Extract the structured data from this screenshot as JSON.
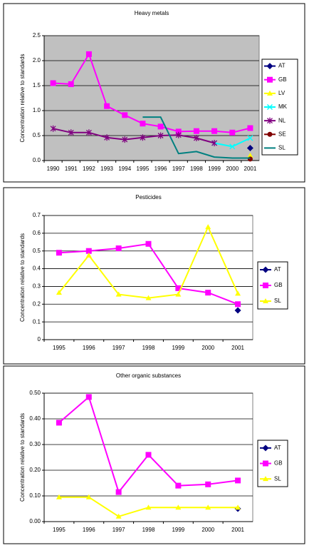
{
  "chart_data": [
    {
      "type": "line",
      "title": "Heavy metals",
      "y_label": "Concentration relative to standards",
      "categories": [
        "1990",
        "1991",
        "1992",
        "1993",
        "1994",
        "1995",
        "1996",
        "1997",
        "1998",
        "1999",
        "2000",
        "2001"
      ],
      "ylim": [
        0,
        2.5
      ],
      "yticks": [
        {
          "value": 0,
          "label": "0.0"
        },
        0.5,
        {
          "value": 1,
          "label": "1.0"
        },
        1.5,
        {
          "value": 2,
          "label": "2.0"
        },
        2.5
      ],
      "grid": true,
      "legend": "right",
      "plot_background": "#c0c0c0",
      "series": [
        {
          "name": "AT",
          "color": "#000080",
          "marker": "diamond",
          "values": [
            null,
            null,
            null,
            null,
            null,
            null,
            null,
            null,
            null,
            null,
            null,
            0.25
          ]
        },
        {
          "name": "GB",
          "color": "#ff00ff",
          "marker": "square",
          "values": [
            1.55,
            1.53,
            2.13,
            1.09,
            0.91,
            0.74,
            0.68,
            0.58,
            0.59,
            0.59,
            0.56,
            0.65
          ]
        },
        {
          "name": "LV",
          "color": "#ffff00",
          "marker": "triangle",
          "values": [
            null,
            null,
            null,
            null,
            null,
            null,
            null,
            null,
            null,
            null,
            null,
            0.1
          ]
        },
        {
          "name": "MK",
          "color": "#00ffff",
          "marker": "x",
          "values": [
            null,
            null,
            null,
            null,
            null,
            null,
            null,
            null,
            null,
            0.35,
            0.28,
            0.45
          ]
        },
        {
          "name": "NL",
          "color": "#800080",
          "marker": "star",
          "values": [
            0.64,
            0.56,
            0.56,
            0.46,
            0.42,
            0.46,
            0.5,
            0.51,
            0.45,
            0.35,
            null,
            null
          ]
        },
        {
          "name": "SE",
          "color": "#800000",
          "marker": "circle",
          "values": [
            null,
            null,
            null,
            null,
            null,
            null,
            null,
            null,
            null,
            null,
            null,
            0.03
          ]
        },
        {
          "name": "SL",
          "color": "#008080",
          "marker": "none",
          "values": [
            null,
            null,
            null,
            null,
            null,
            0.87,
            0.87,
            0.14,
            0.18,
            0.07,
            0.05,
            0.05
          ]
        }
      ]
    },
    {
      "type": "line",
      "title": "Pesticides",
      "y_label": "Concentration relative to standards",
      "categories": [
        "1995",
        "1996",
        "1997",
        "1998",
        "1999",
        "2000",
        "2001"
      ],
      "ylim": [
        0,
        0.7
      ],
      "yticks": [
        0,
        0.1,
        0.2,
        0.3,
        0.4,
        0.5,
        0.6,
        0.7
      ],
      "grid": true,
      "legend": "right",
      "plot_background": "#ffffff",
      "series": [
        {
          "name": "AT",
          "color": "#000080",
          "marker": "diamond",
          "values": [
            null,
            null,
            null,
            null,
            null,
            null,
            0.165
          ]
        },
        {
          "name": "GB",
          "color": "#ff00ff",
          "marker": "square",
          "values": [
            0.49,
            0.5,
            0.515,
            0.54,
            0.29,
            0.265,
            0.2
          ]
        },
        {
          "name": "SL",
          "color": "#ffff00",
          "marker": "triangle",
          "values": [
            0.265,
            0.475,
            0.255,
            0.235,
            0.255,
            0.635,
            0.26
          ]
        }
      ]
    },
    {
      "type": "line",
      "title": "Other organic substances",
      "y_label": "Concentration relative to standards",
      "categories": [
        "1995",
        "1996",
        "1997",
        "1998",
        "1999",
        "2000",
        "2001"
      ],
      "ylim": [
        0,
        0.5
      ],
      "yticks": [
        {
          "value": 0,
          "label": "0.00"
        },
        {
          "value": 0.1,
          "label": "0.10"
        },
        {
          "value": 0.2,
          "label": "0.20"
        },
        {
          "value": 0.3,
          "label": "0.30"
        },
        {
          "value": 0.4,
          "label": "0.40"
        },
        {
          "value": 0.5,
          "label": "0.50"
        }
      ],
      "grid": true,
      "legend": "right",
      "plot_background": "#ffffff",
      "series": [
        {
          "name": "AT",
          "color": "#000080",
          "marker": "diamond",
          "values": [
            null,
            null,
            null,
            null,
            null,
            null,
            0.05
          ]
        },
        {
          "name": "GB",
          "color": "#ff00ff",
          "marker": "square",
          "values": [
            0.385,
            0.485,
            0.115,
            0.26,
            0.14,
            0.145,
            0.16
          ]
        },
        {
          "name": "SL",
          "color": "#ffff00",
          "marker": "triangle",
          "values": [
            0.095,
            0.095,
            0.02,
            0.055,
            0.055,
            0.055,
            0.055
          ]
        }
      ]
    }
  ]
}
